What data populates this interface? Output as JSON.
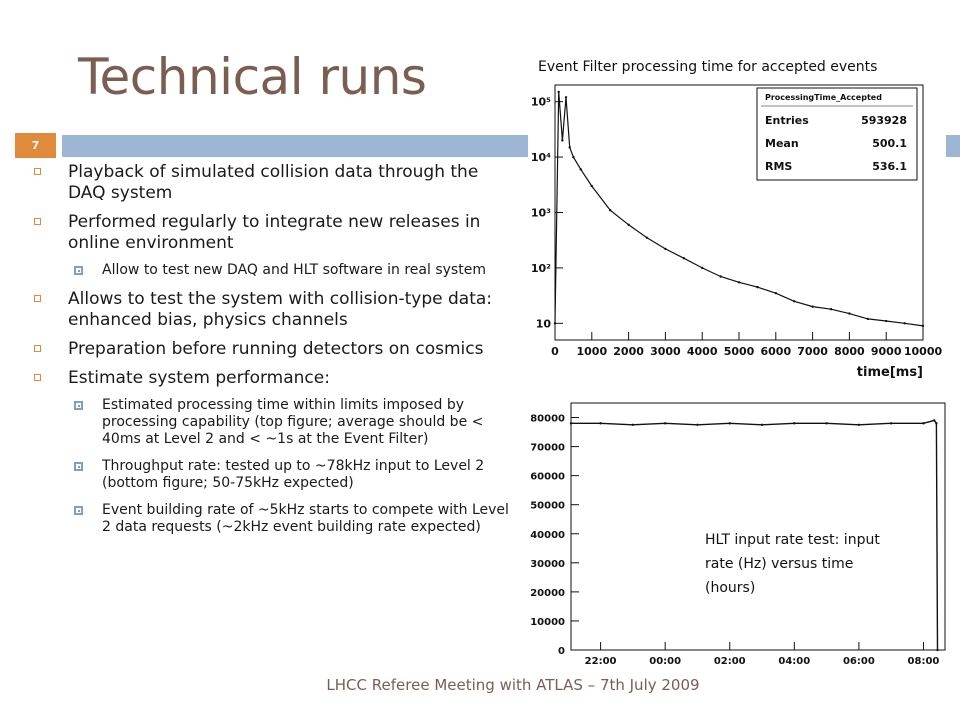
{
  "slide": {
    "title": "Technical runs",
    "number": "7",
    "footer": "LHCC Referee Meeting with ATLAS – 7th July 2009"
  },
  "bullets": [
    {
      "level": 1,
      "text": "Playback of simulated collision data through the DAQ system"
    },
    {
      "level": 1,
      "text": "Performed regularly to integrate new releases in online environment"
    },
    {
      "level": 2,
      "text": "Allow to test new DAQ and HLT software in real system"
    },
    {
      "level": 1,
      "text": "Allows to test the system with collision-type data: enhanced bias, physics channels"
    },
    {
      "level": 1,
      "text": "Preparation before running detectors on cosmics"
    },
    {
      "level": 1,
      "text": "Estimate system performance:"
    },
    {
      "level": 2,
      "text": "Estimated processing time within limits imposed by processing capability (top figure; average should be < 40ms at Level 2 and < ~1s at the Event Filter)"
    },
    {
      "level": 2,
      "text": "Throughput rate: tested up to ~78kHz input to Level 2 (bottom figure; 50-75kHz expected)"
    },
    {
      "level": 2,
      "text": "Event building rate of ~5kHz starts to compete with Level 2 data requests (~2kHz event building rate expected)"
    }
  ],
  "top_figure_caption": "Event Filter processing time for accepted events",
  "bottom_figure_caption": "HLT input rate test: input rate (Hz) versus time (hours)",
  "colors": {
    "title": "#7a5e52",
    "accent_orange": "#e08a3c",
    "accent_blue": "#9cb6d4",
    "plot_line": "#111111"
  },
  "chart_data": [
    {
      "type": "line",
      "name": "processing-time-histogram",
      "title": "",
      "xlabel": "time[ms]",
      "ylabel": "",
      "xlim": [
        0,
        10000
      ],
      "ylim": [
        5,
        200000
      ],
      "yscale": "log",
      "x_ticks": [
        "0",
        "1000",
        "2000",
        "3000",
        "4000",
        "5000",
        "6000",
        "7000",
        "8000",
        "9000",
        "10000"
      ],
      "y_ticks": [
        "10",
        "10²",
        "10³",
        "10⁴",
        "10⁵"
      ],
      "stats_box": {
        "name": "ProcessingTime_Accepted",
        "rows": [
          {
            "label": "Entries",
            "value": "593928"
          },
          {
            "label": "Mean",
            "value": "500.1"
          },
          {
            "label": "RMS",
            "value": "536.1"
          }
        ]
      },
      "x": [
        0,
        100,
        200,
        300,
        400,
        500,
        700,
        1000,
        1500,
        2000,
        2500,
        3000,
        3500,
        4000,
        4500,
        5000,
        5500,
        6000,
        6500,
        7000,
        7500,
        8000,
        8500,
        9000,
        9500,
        10000
      ],
      "y": [
        10,
        150000,
        20000,
        120000,
        15000,
        10000,
        6000,
        3000,
        1100,
        600,
        350,
        220,
        150,
        100,
        70,
        55,
        45,
        35,
        25,
        20,
        18,
        15,
        12,
        11,
        10,
        9
      ],
      "grid": false
    },
    {
      "type": "line",
      "name": "hlt-input-rate",
      "title": "",
      "xlabel": "",
      "ylabel": "",
      "ylim": [
        0,
        85000
      ],
      "x_ticks": [
        "22:00",
        "00:00",
        "02:00",
        "04:00",
        "06:00",
        "08:00"
      ],
      "y_ticks": [
        "0",
        "10000",
        "20000",
        "30000",
        "40000",
        "50000",
        "60000",
        "70000",
        "80000"
      ],
      "x": [
        "21:05",
        "22:00",
        "23:00",
        "00:00",
        "01:00",
        "02:00",
        "03:00",
        "04:00",
        "05:00",
        "06:00",
        "07:00",
        "08:00",
        "08:20",
        "08:24",
        "08:26"
      ],
      "y": [
        78000,
        78000,
        77500,
        78000,
        77500,
        78000,
        77500,
        78000,
        78000,
        77500,
        78000,
        78000,
        79000,
        78000,
        0
      ],
      "grid": false
    }
  ]
}
